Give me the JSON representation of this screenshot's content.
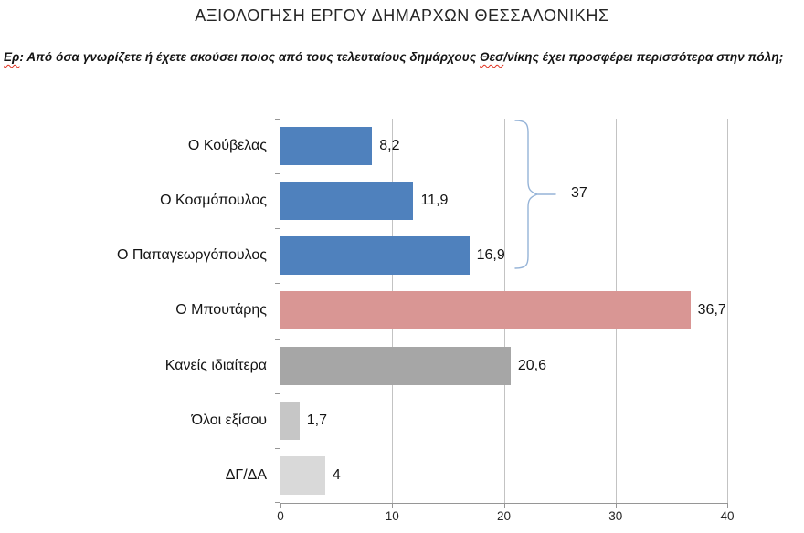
{
  "page": {
    "title": "ΑΞΙΟΛΟΓΗΣΗ ΕΡΓΟΥ ΔΗΜΑΡΧΩΝ ΘΕΣΣΑΛΟΝΙΚΗΣ",
    "question_segments": [
      {
        "text": "Ερ",
        "misspelled": true
      },
      {
        "text": ": Από όσα γνωρίζετε ή έχετε ακούσει ποιος από τους τελευταίους δημάρχους ",
        "misspelled": false
      },
      {
        "text": "Θεσ",
        "misspelled": true
      },
      {
        "text": "/νίκης έχει προσφέρει περισσότερα στην πόλη;",
        "misspelled": false
      }
    ]
  },
  "chart_data": {
    "type": "bar",
    "orientation": "horizontal",
    "title": "ΑΞΙΟΛΟΓΗΣΗ ΕΡΓΟΥ ΔΗΜΑΡΧΩΝ ΘΕΣΣΑΛΟΝΙΚΗΣ",
    "question": "Ερ: Από όσα γνωρίζετε ή έχετε ακούσει ποιος από τους τελευταίους δημάρχους Θεσ/νίκης έχει προσφέρει περισσότερα στην πόλη;",
    "categories": [
      "Ο Κούβελας",
      "Ο Κοσμόπουλος",
      "Ο Παπαγεωργόπουλος",
      "Ο Μπουτάρης",
      "Κανείς ιδιαίτερα",
      "Όλοι εξίσου",
      "ΔΓ/ΔΑ"
    ],
    "values": [
      8.2,
      11.9,
      16.9,
      36.7,
      20.6,
      1.7,
      4
    ],
    "value_labels": [
      "8,2",
      "11,9",
      "16,9",
      "36,7",
      "20,6",
      "1,7",
      "4"
    ],
    "bar_colors": [
      "#4f81bd",
      "#4f81bd",
      "#4f81bd",
      "#d99694",
      "#a6a6a6",
      "#c6c6c6",
      "#d9d9d9"
    ],
    "xlim": [
      0,
      40
    ],
    "x_ticks": [
      0,
      10,
      20,
      30,
      40
    ],
    "grid": true,
    "legend": "none",
    "annotation": {
      "label": "37",
      "grouped_categories": [
        "Ο Κούβελας",
        "Ο Κοσμόπουλος",
        "Ο Παπαγεωργόπουλος"
      ],
      "brace_color": "#95b3d7"
    },
    "colors": {
      "blue": "#4f81bd",
      "pink": "#d99694",
      "gray_dark": "#a6a6a6",
      "gray_mid": "#c6c6c6",
      "gray_light": "#d9d9d9",
      "gridline": "#c3c3c3",
      "axis": "#969696",
      "spellcheck_underline": "#e0301e"
    }
  }
}
